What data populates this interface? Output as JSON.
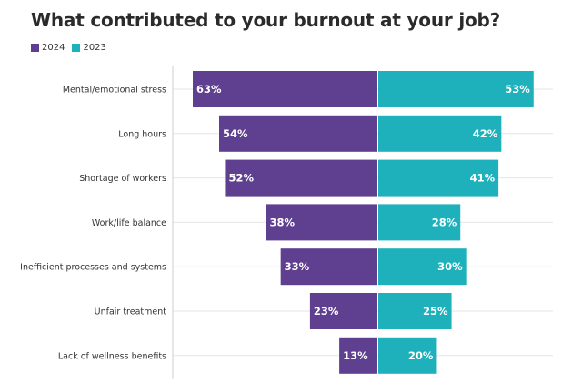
{
  "header": {
    "title": "What contributed to your burnout at your job?"
  },
  "colors": {
    "series_2024": "#5f3f8f",
    "series_2023": "#1eb1bb",
    "gridline": "#e6e6e6",
    "axis": "#cfcfcf"
  },
  "chart_data": {
    "type": "bar",
    "orientation": "horizontal-diverging",
    "title": "What contributed to your burnout at your job?",
    "legend": {
      "placement": "top-left",
      "entries": [
        "2024",
        "2023"
      ]
    },
    "grid": true,
    "xlim": [
      0,
      63
    ],
    "categories": [
      "Mental/emotional stress",
      "Long hours",
      "Shortage of workers",
      "Work/life balance",
      "Inefficient processes and systems",
      "Unfair treatment",
      "Lack of wellness benefits"
    ],
    "series": [
      {
        "name": "2024",
        "values": [
          63,
          54,
          52,
          38,
          33,
          23,
          13
        ],
        "labels": [
          "63%",
          "54%",
          "52%",
          "38%",
          "33%",
          "23%",
          "13%"
        ]
      },
      {
        "name": "2023",
        "values": [
          53,
          42,
          41,
          28,
          30,
          25,
          20
        ],
        "labels": [
          "53%",
          "42%",
          "41%",
          "28%",
          "30%",
          "25%",
          "20%"
        ]
      }
    ]
  }
}
